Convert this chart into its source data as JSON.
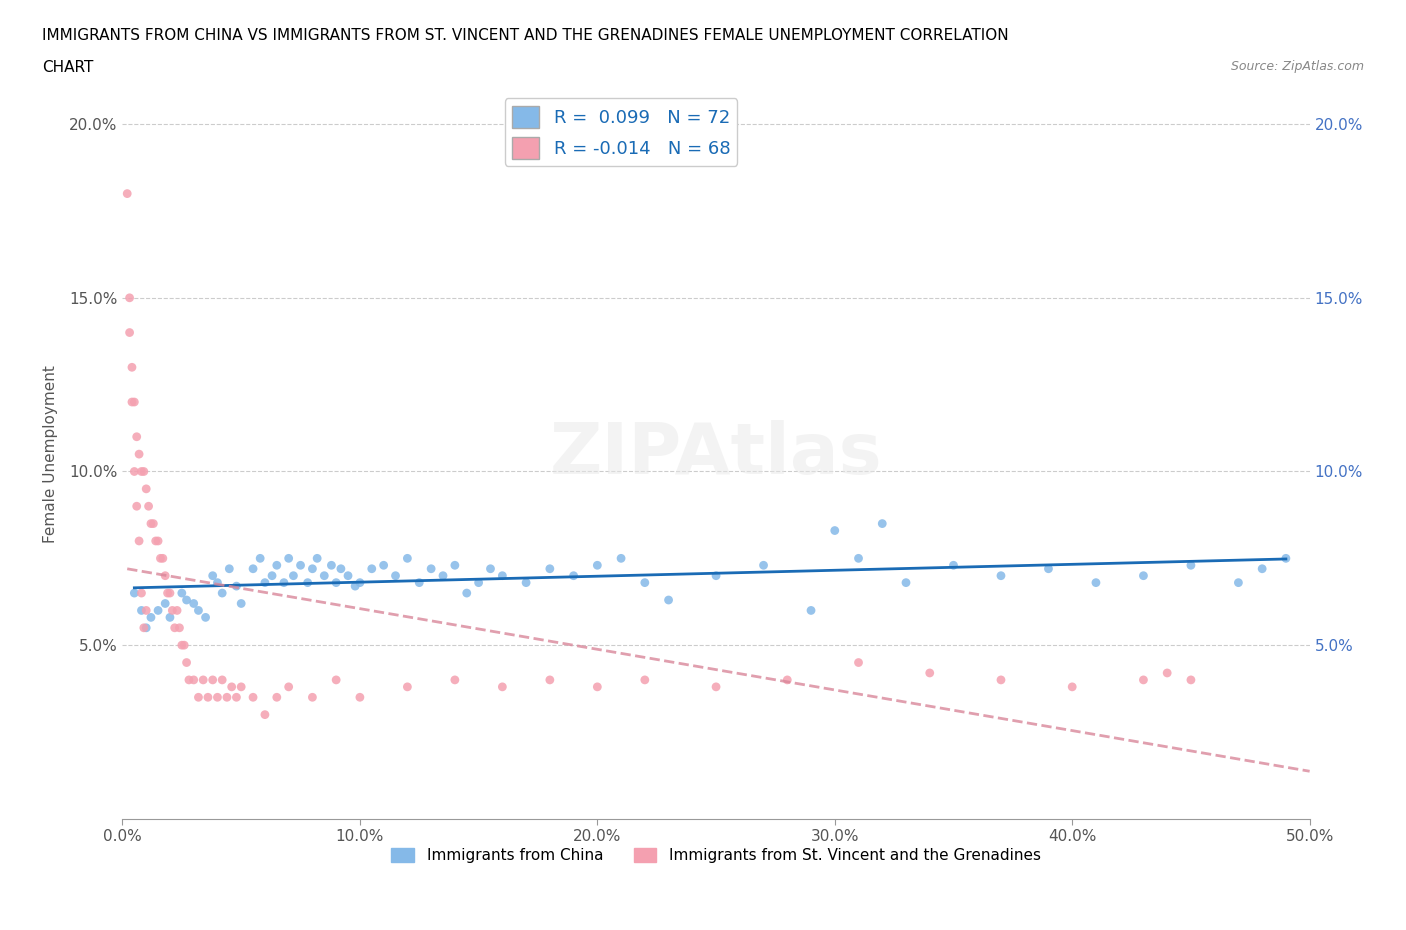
{
  "title_line1": "IMMIGRANTS FROM CHINA VS IMMIGRANTS FROM ST. VINCENT AND THE GRENADINES FEMALE UNEMPLOYMENT CORRELATION",
  "title_line2": "CHART",
  "source": "Source: ZipAtlas.com",
  "xlabel": "",
  "ylabel": "Female Unemployment",
  "xlim": [
    0,
    0.5
  ],
  "ylim": [
    0,
    0.21
  ],
  "xticks": [
    0.0,
    0.1,
    0.2,
    0.3,
    0.4,
    0.5
  ],
  "yticks": [
    0.05,
    0.1,
    0.15,
    0.2
  ],
  "xticklabels": [
    "0.0%",
    "10.0%",
    "20.0%",
    "30.0%",
    "40.0%",
    "50.0%"
  ],
  "yticklabels": [
    "5.0%",
    "10.0%",
    "15.0%",
    "20.0%"
  ],
  "legend_entry1": "R =  0.099   N = 72",
  "legend_entry2": "R = -0.014   N = 68",
  "legend_label1": "Immigrants from China",
  "legend_label2": "Immigrants from St. Vincent and the Grenadines",
  "color_china": "#85b9e8",
  "color_svg": "#f4a0b0",
  "trendline_color_china": "#1a6bb5",
  "trendline_color_svg": "#d9879a",
  "scatter_alpha": 0.85,
  "china_x": [
    0.005,
    0.008,
    0.01,
    0.012,
    0.015,
    0.018,
    0.02,
    0.025,
    0.027,
    0.03,
    0.032,
    0.035,
    0.038,
    0.04,
    0.042,
    0.045,
    0.048,
    0.05,
    0.055,
    0.058,
    0.06,
    0.063,
    0.065,
    0.068,
    0.07,
    0.072,
    0.075,
    0.078,
    0.08,
    0.082,
    0.085,
    0.088,
    0.09,
    0.092,
    0.095,
    0.098,
    0.1,
    0.105,
    0.11,
    0.115,
    0.12,
    0.125,
    0.13,
    0.135,
    0.14,
    0.145,
    0.15,
    0.155,
    0.16,
    0.17,
    0.18,
    0.19,
    0.2,
    0.21,
    0.22,
    0.23,
    0.25,
    0.27,
    0.29,
    0.31,
    0.33,
    0.35,
    0.37,
    0.39,
    0.41,
    0.43,
    0.45,
    0.47,
    0.48,
    0.49,
    0.3,
    0.32
  ],
  "china_y": [
    0.065,
    0.06,
    0.055,
    0.058,
    0.06,
    0.062,
    0.058,
    0.065,
    0.063,
    0.062,
    0.06,
    0.058,
    0.07,
    0.068,
    0.065,
    0.072,
    0.067,
    0.062,
    0.072,
    0.075,
    0.068,
    0.07,
    0.073,
    0.068,
    0.075,
    0.07,
    0.073,
    0.068,
    0.072,
    0.075,
    0.07,
    0.073,
    0.068,
    0.072,
    0.07,
    0.067,
    0.068,
    0.072,
    0.073,
    0.07,
    0.075,
    0.068,
    0.072,
    0.07,
    0.073,
    0.065,
    0.068,
    0.072,
    0.07,
    0.068,
    0.072,
    0.07,
    0.073,
    0.075,
    0.068,
    0.063,
    0.07,
    0.073,
    0.06,
    0.075,
    0.068,
    0.073,
    0.07,
    0.072,
    0.068,
    0.07,
    0.073,
    0.068,
    0.072,
    0.075,
    0.083,
    0.085
  ],
  "svg_x": [
    0.002,
    0.003,
    0.004,
    0.005,
    0.006,
    0.007,
    0.008,
    0.009,
    0.01,
    0.011,
    0.012,
    0.013,
    0.014,
    0.015,
    0.016,
    0.017,
    0.018,
    0.019,
    0.02,
    0.021,
    0.022,
    0.023,
    0.024,
    0.025,
    0.026,
    0.027,
    0.028,
    0.03,
    0.032,
    0.034,
    0.036,
    0.038,
    0.04,
    0.042,
    0.044,
    0.046,
    0.048,
    0.05,
    0.055,
    0.06,
    0.065,
    0.07,
    0.08,
    0.09,
    0.1,
    0.12,
    0.14,
    0.16,
    0.18,
    0.2,
    0.22,
    0.25,
    0.28,
    0.31,
    0.34,
    0.37,
    0.4,
    0.43,
    0.44,
    0.45,
    0.003,
    0.004,
    0.005,
    0.006,
    0.007,
    0.008,
    0.009,
    0.01
  ],
  "svg_y": [
    0.18,
    0.15,
    0.13,
    0.12,
    0.11,
    0.105,
    0.1,
    0.1,
    0.095,
    0.09,
    0.085,
    0.085,
    0.08,
    0.08,
    0.075,
    0.075,
    0.07,
    0.065,
    0.065,
    0.06,
    0.055,
    0.06,
    0.055,
    0.05,
    0.05,
    0.045,
    0.04,
    0.04,
    0.035,
    0.04,
    0.035,
    0.04,
    0.035,
    0.04,
    0.035,
    0.038,
    0.035,
    0.038,
    0.035,
    0.03,
    0.035,
    0.038,
    0.035,
    0.04,
    0.035,
    0.038,
    0.04,
    0.038,
    0.04,
    0.038,
    0.04,
    0.038,
    0.04,
    0.045,
    0.042,
    0.04,
    0.038,
    0.04,
    0.042,
    0.04,
    0.14,
    0.12,
    0.1,
    0.09,
    0.08,
    0.065,
    0.055,
    0.06
  ]
}
